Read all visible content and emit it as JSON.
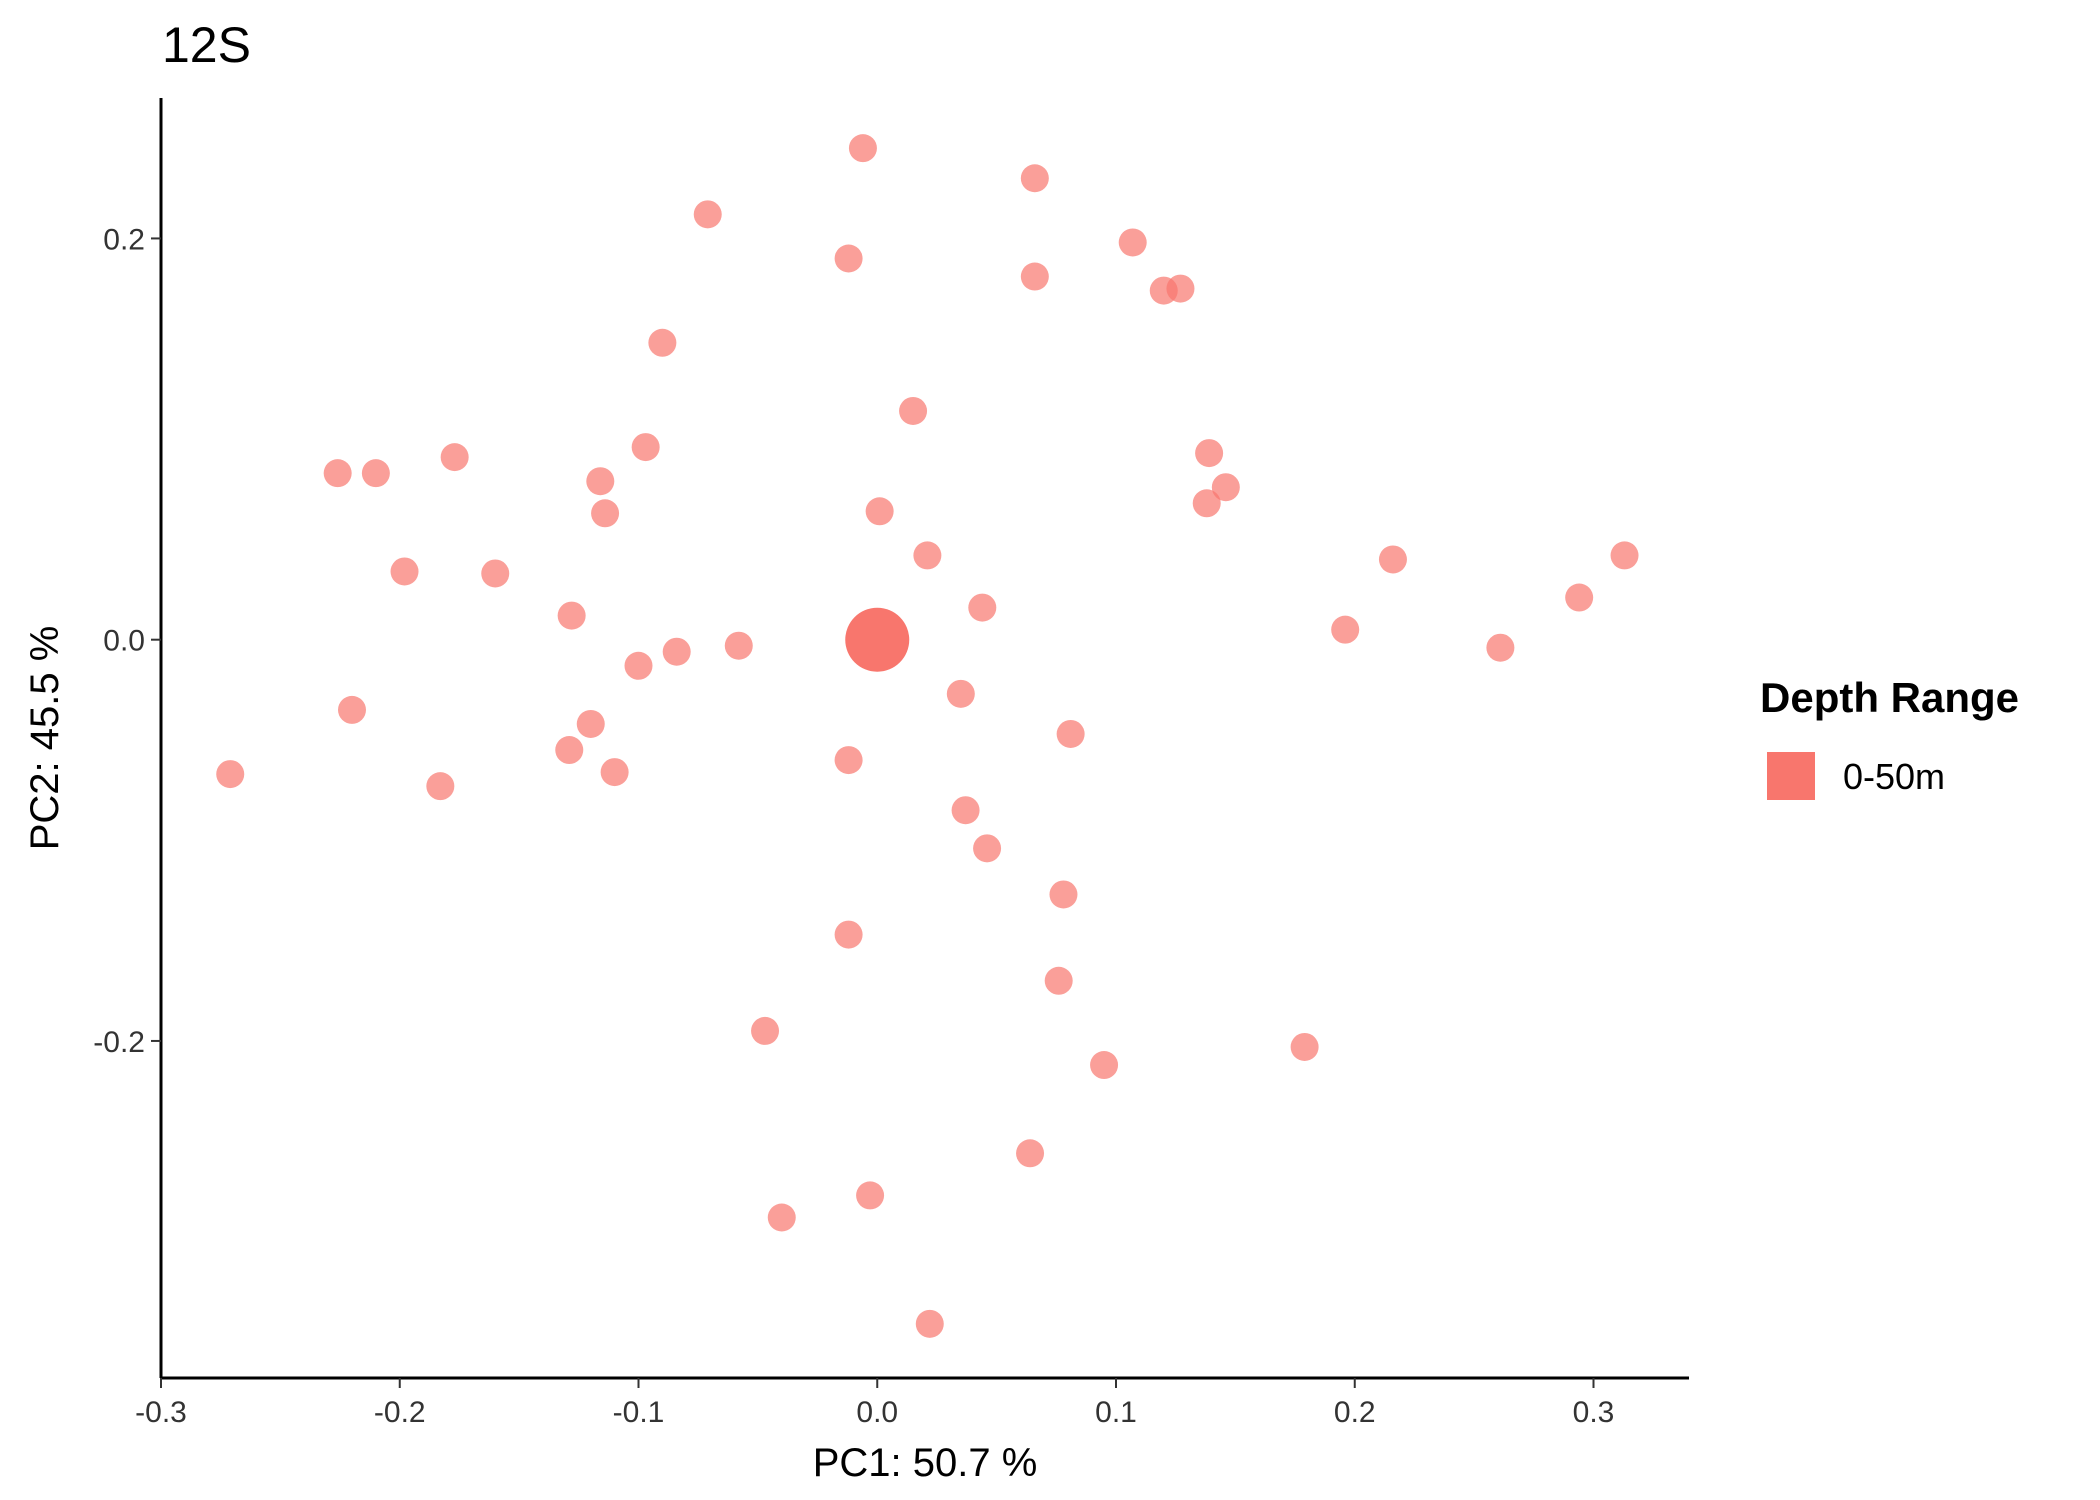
{
  "chart_data": {
    "type": "scatter",
    "title": "12S",
    "xlabel": "PC1:  50.7 %",
    "ylabel": "PC2:  45.5 %",
    "xlim": [
      -0.3,
      0.34
    ],
    "ylim": [
      -0.368,
      0.27
    ],
    "x_ticks": [
      {
        "value": -0.3,
        "label": "-0.3"
      },
      {
        "value": -0.2,
        "label": "-0.2"
      },
      {
        "value": -0.1,
        "label": "-0.1"
      },
      {
        "value": 0.0,
        "label": "0.0"
      },
      {
        "value": 0.1,
        "label": "0.1"
      },
      {
        "value": 0.2,
        "label": "0.2"
      },
      {
        "value": 0.3,
        "label": "0.3"
      }
    ],
    "y_ticks": [
      {
        "value": -0.2,
        "label": "-0.2"
      },
      {
        "value": 0.0,
        "label": "0.0"
      },
      {
        "value": 0.2,
        "label": "0.2"
      }
    ],
    "grid": false,
    "legend": {
      "title": "Depth Range",
      "position": "right",
      "entries": [
        {
          "label": "0-50m",
          "color": "#F8766D"
        }
      ]
    },
    "series": [
      {
        "name": "0-50m",
        "color": "#F8766D",
        "points": [
          {
            "x": -0.006,
            "y": 0.245
          },
          {
            "x": 0.066,
            "y": 0.23
          },
          {
            "x": -0.071,
            "y": 0.212
          },
          {
            "x": 0.107,
            "y": 0.198
          },
          {
            "x": -0.012,
            "y": 0.19
          },
          {
            "x": 0.066,
            "y": 0.181
          },
          {
            "x": 0.12,
            "y": 0.174
          },
          {
            "x": 0.127,
            "y": 0.175
          },
          {
            "x": -0.09,
            "y": 0.148
          },
          {
            "x": 0.015,
            "y": 0.114
          },
          {
            "x": -0.097,
            "y": 0.096
          },
          {
            "x": 0.139,
            "y": 0.093
          },
          {
            "x": -0.177,
            "y": 0.091
          },
          {
            "x": -0.226,
            "y": 0.083
          },
          {
            "x": -0.21,
            "y": 0.083
          },
          {
            "x": -0.116,
            "y": 0.079
          },
          {
            "x": 0.146,
            "y": 0.076
          },
          {
            "x": 0.138,
            "y": 0.068
          },
          {
            "x": -0.114,
            "y": 0.063
          },
          {
            "x": 0.001,
            "y": 0.064
          },
          {
            "x": 0.021,
            "y": 0.042
          },
          {
            "x": 0.313,
            "y": 0.042
          },
          {
            "x": 0.216,
            "y": 0.04
          },
          {
            "x": -0.198,
            "y": 0.034
          },
          {
            "x": -0.16,
            "y": 0.033
          },
          {
            "x": 0.294,
            "y": 0.021
          },
          {
            "x": 0.044,
            "y": 0.016
          },
          {
            "x": -0.128,
            "y": 0.012
          },
          {
            "x": 0.196,
            "y": 0.005
          },
          {
            "x": -0.058,
            "y": -0.003
          },
          {
            "x": -0.084,
            "y": -0.006
          },
          {
            "x": 0.261,
            "y": -0.004
          },
          {
            "x": -0.1,
            "y": -0.013
          },
          {
            "x": 0.035,
            "y": -0.027
          },
          {
            "x": -0.22,
            "y": -0.035
          },
          {
            "x": -0.12,
            "y": -0.042
          },
          {
            "x": 0.081,
            "y": -0.047
          },
          {
            "x": -0.129,
            "y": -0.055
          },
          {
            "x": -0.012,
            "y": -0.06
          },
          {
            "x": -0.11,
            "y": -0.066
          },
          {
            "x": -0.271,
            "y": -0.067
          },
          {
            "x": -0.183,
            "y": -0.073
          },
          {
            "x": 0.037,
            "y": -0.085
          },
          {
            "x": 0.046,
            "y": -0.104
          },
          {
            "x": 0.078,
            "y": -0.127
          },
          {
            "x": -0.012,
            "y": -0.147
          },
          {
            "x": 0.076,
            "y": -0.17
          },
          {
            "x": -0.047,
            "y": -0.195
          },
          {
            "x": 0.179,
            "y": -0.203
          },
          {
            "x": 0.095,
            "y": -0.212
          },
          {
            "x": 0.064,
            "y": -0.256
          },
          {
            "x": -0.003,
            "y": -0.277
          },
          {
            "x": -0.04,
            "y": -0.288
          },
          {
            "x": 0.022,
            "y": -0.341
          }
        ]
      }
    ],
    "centroid": {
      "x": 0.0,
      "y": 0.0
    }
  }
}
